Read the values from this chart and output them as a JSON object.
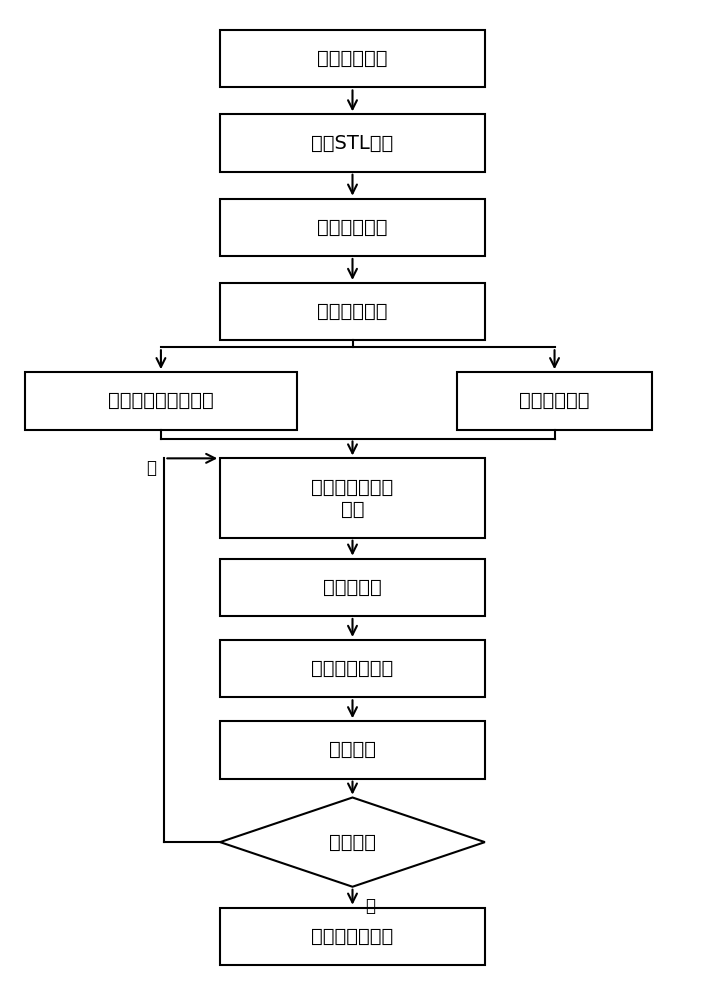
{
  "bg_color": "#ffffff",
  "box_color": "#ffffff",
  "box_edge_color": "#000000",
  "arrow_color": "#000000",
  "text_color": "#000000",
  "font_size": 14,
  "small_font_size": 12,
  "fig_width": 7.05,
  "fig_height": 10.0,
  "labels": {
    "draw3d": "绘制三维模型",
    "importstl": "导入STL文件",
    "adjustparam": "调整打印参数",
    "prepmat": "准备打印材料",
    "absorber": "配置无机微波吸收剂",
    "powder": "制备陶瓷粉末",
    "lower": "成形缸下降一个\n层厚",
    "spread": "铺粉辊铺粉",
    "spray": "喷射无机粘结剂",
    "microwave": "微波固化",
    "done": "打印完成",
    "sic": "碳化硅零件初坯",
    "yes": "是",
    "no": "否"
  }
}
